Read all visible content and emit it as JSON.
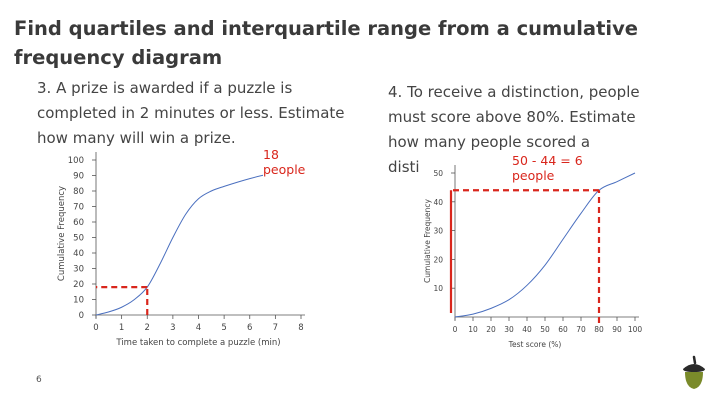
{
  "title": "Find quartiles and interquartile range from a cumulative frequency diagram",
  "question3": "3. A prize is awarded if a puzzle is completed in 2 minutes or less. Estimate how many will win a prize.",
  "question4_line1": "4. To receive a distinction, people",
  "question4_line2": "must score above 80%. Estimate",
  "question4_line3": "how many people scored a",
  "question4_line4": "disti",
  "annotation1_line1": "18",
  "annotation1_line2": "people",
  "annotation2_line1": "50 - 44 = 6",
  "annotation2_line2": "people",
  "page_number": "6",
  "colors": {
    "curve": "#4a6fbf",
    "dashed": "#d9261c",
    "axis": "#555555"
  },
  "chart_data": [
    {
      "type": "line",
      "xlabel": "Time taken to complete a puzzle (min)",
      "ylabel": "Cumulative Frequency",
      "x_ticks": [
        "0",
        "1",
        "2",
        "3",
        "4",
        "5",
        "6",
        "7",
        "8"
      ],
      "y_ticks": [
        "0",
        "10",
        "20",
        "30",
        "40",
        "50",
        "60",
        "70",
        "80",
        "90",
        "100"
      ],
      "xlim": [
        0,
        8
      ],
      "ylim": [
        0,
        100
      ],
      "series": [
        {
          "x": [
            0,
            0.5,
            1,
            1.5,
            2,
            2.5,
            3,
            3.5,
            4,
            4.5,
            5,
            6,
            7,
            8
          ],
          "y": [
            0,
            2,
            5,
            10,
            18,
            33,
            50,
            65,
            75,
            80,
            83,
            88,
            92,
            96
          ]
        }
      ],
      "reading": {
        "x": 2,
        "y": 18
      }
    },
    {
      "type": "line",
      "xlabel": "Test score (%)",
      "ylabel": "Cumulative Frequency",
      "x_ticks": [
        "0",
        "10",
        "20",
        "30",
        "40",
        "50",
        "60",
        "70",
        "80",
        "90",
        "100"
      ],
      "y_ticks": [
        "10",
        "20",
        "30",
        "40",
        "50"
      ],
      "xlim": [
        0,
        100
      ],
      "ylim": [
        0,
        50
      ],
      "series": [
        {
          "x": [
            0,
            10,
            20,
            30,
            40,
            50,
            60,
            70,
            80,
            90,
            100
          ],
          "y": [
            0,
            1,
            3,
            6,
            11,
            18,
            27,
            36,
            44,
            47,
            50
          ]
        }
      ],
      "reading": {
        "x": 80,
        "y": 44
      }
    }
  ]
}
